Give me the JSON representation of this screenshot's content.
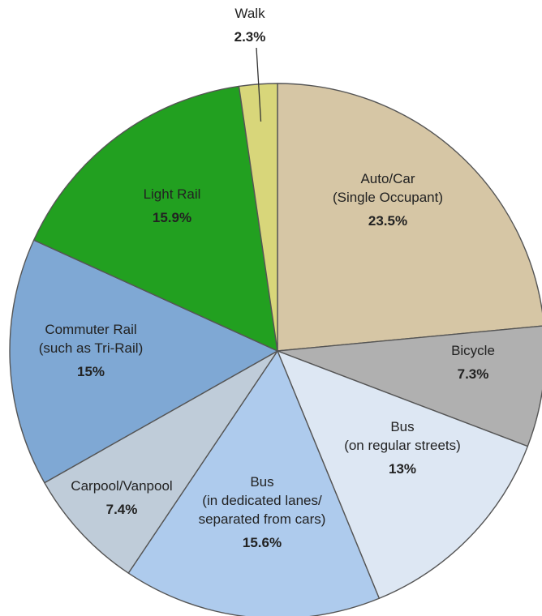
{
  "chart_data": {
    "type": "pie",
    "title": "",
    "slices": [
      {
        "label": [
          "Auto/Car",
          "(Single Occupant)"
        ],
        "value": 23.5,
        "display": "23.5%",
        "color": "#d6c6a5"
      },
      {
        "label": [
          "Bicycle"
        ],
        "value": 7.3,
        "display": "7.3%",
        "color": "#b0b0b0"
      },
      {
        "label": [
          "Bus",
          "(on regular streets)"
        ],
        "value": 13,
        "display": "13%",
        "color": "#dde7f3"
      },
      {
        "label": [
          "Bus",
          "(in dedicated lanes/",
          "separated from cars)"
        ],
        "value": 15.6,
        "display": "15.6%",
        "color": "#aecbed"
      },
      {
        "label": [
          "Carpool/Vanpool"
        ],
        "value": 7.4,
        "display": "7.4%",
        "color": "#bfccd9"
      },
      {
        "label": [
          "Commuter Rail",
          "(such as Tri-Rail)"
        ],
        "value": 15,
        "display": "15%",
        "color": "#7fa8d4"
      },
      {
        "label": [
          "Light Rail"
        ],
        "value": 15.9,
        "display": "15.9%",
        "color": "#22a020"
      },
      {
        "label": [
          "Walk"
        ],
        "value": 2.3,
        "display": "2.3%",
        "color": "#d8d67a"
      }
    ]
  }
}
